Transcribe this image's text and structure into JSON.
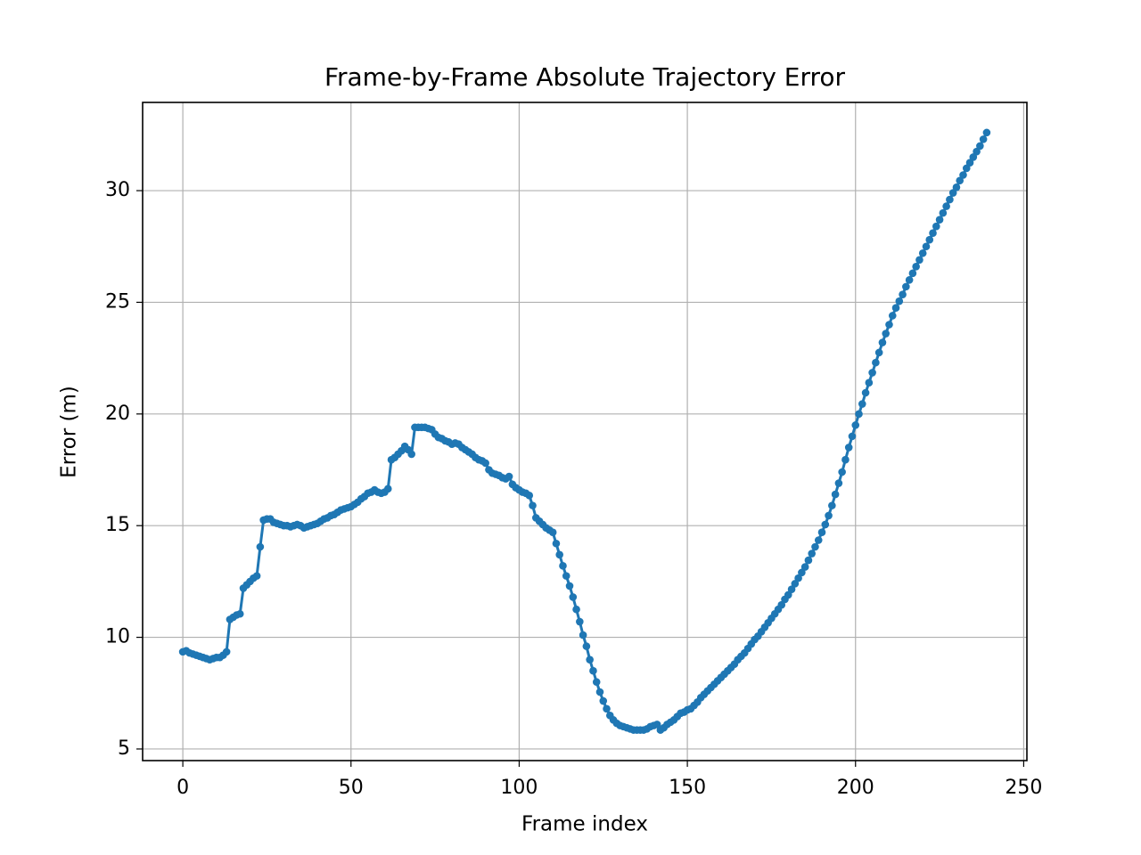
{
  "chart_data": {
    "type": "line",
    "title": "Frame-by-Frame Absolute Trajectory Error",
    "x_label": "Frame index",
    "y_label": "Error (m)",
    "x": [
      0,
      1,
      2,
      3,
      4,
      5,
      6,
      7,
      8,
      9,
      10,
      11,
      12,
      13,
      14,
      15,
      16,
      17,
      18,
      19,
      20,
      21,
      22,
      23,
      24,
      25,
      26,
      27,
      28,
      29,
      30,
      31,
      32,
      33,
      34,
      35,
      36,
      37,
      38,
      39,
      40,
      41,
      42,
      43,
      44,
      45,
      46,
      47,
      48,
      49,
      50,
      51,
      52,
      53,
      54,
      55,
      56,
      57,
      58,
      59,
      60,
      61,
      62,
      63,
      64,
      65,
      66,
      67,
      68,
      69,
      70,
      71,
      72,
      73,
      74,
      75,
      76,
      77,
      78,
      79,
      80,
      81,
      82,
      83,
      84,
      85,
      86,
      87,
      88,
      89,
      90,
      91,
      92,
      93,
      94,
      95,
      96,
      97,
      98,
      99,
      100,
      101,
      102,
      103,
      104,
      105,
      106,
      107,
      108,
      109,
      110,
      111,
      112,
      113,
      114,
      115,
      116,
      117,
      118,
      119,
      120,
      121,
      122,
      123,
      124,
      125,
      126,
      127,
      128,
      129,
      130,
      131,
      132,
      133,
      134,
      135,
      136,
      137,
      138,
      139,
      140,
      141,
      142,
      143,
      144,
      145,
      146,
      147,
      148,
      149,
      150,
      151,
      152,
      153,
      154,
      155,
      156,
      157,
      158,
      159,
      160,
      161,
      162,
      163,
      164,
      165,
      166,
      167,
      168,
      169,
      170,
      171,
      172,
      173,
      174,
      175,
      176,
      177,
      178,
      179,
      180,
      181,
      182,
      183,
      184,
      185,
      186,
      187,
      188,
      189,
      190,
      191,
      192,
      193,
      194,
      195,
      196,
      197,
      198,
      199,
      200,
      201,
      202,
      203,
      204,
      205,
      206,
      207,
      208,
      209,
      210,
      211,
      212,
      213,
      214,
      215,
      216,
      217,
      218,
      219,
      220,
      221,
      222,
      223,
      224,
      225,
      226,
      227,
      228,
      229,
      230,
      231,
      232,
      233,
      234,
      235,
      236,
      237,
      238,
      239
    ],
    "series": [
      {
        "color": "#1f77b4",
        "values": [
          9.35,
          9.4,
          9.3,
          9.25,
          9.2,
          9.15,
          9.1,
          9.05,
          9.0,
          9.05,
          9.1,
          9.1,
          9.2,
          9.35,
          10.8,
          10.9,
          11.0,
          11.05,
          12.2,
          12.35,
          12.5,
          12.65,
          12.75,
          14.05,
          15.25,
          15.3,
          15.3,
          15.15,
          15.1,
          15.05,
          15.0,
          15.0,
          14.95,
          15.0,
          15.05,
          15.0,
          14.9,
          14.95,
          15.0,
          15.05,
          15.1,
          15.2,
          15.3,
          15.35,
          15.45,
          15.5,
          15.6,
          15.7,
          15.75,
          15.8,
          15.85,
          15.95,
          16.05,
          16.2,
          16.3,
          16.45,
          16.5,
          16.6,
          16.5,
          16.45,
          16.5,
          16.65,
          17.95,
          18.05,
          18.2,
          18.35,
          18.55,
          18.4,
          18.2,
          19.4,
          19.4,
          19.4,
          19.4,
          19.35,
          19.3,
          19.1,
          18.95,
          18.9,
          18.8,
          18.75,
          18.65,
          18.7,
          18.65,
          18.5,
          18.4,
          18.3,
          18.2,
          18.05,
          17.95,
          17.9,
          17.8,
          17.5,
          17.35,
          17.3,
          17.25,
          17.15,
          17.1,
          17.2,
          16.85,
          16.7,
          16.6,
          16.5,
          16.45,
          16.35,
          15.9,
          15.35,
          15.2,
          15.05,
          14.9,
          14.8,
          14.7,
          14.2,
          13.7,
          13.2,
          12.75,
          12.3,
          11.8,
          11.25,
          10.7,
          10.1,
          9.6,
          9.0,
          8.5,
          8.0,
          7.55,
          7.15,
          6.8,
          6.5,
          6.3,
          6.15,
          6.05,
          6.0,
          5.95,
          5.9,
          5.85,
          5.85,
          5.85,
          5.85,
          5.9,
          6.0,
          6.05,
          6.1,
          5.85,
          5.95,
          6.1,
          6.2,
          6.3,
          6.45,
          6.6,
          6.65,
          6.75,
          6.8,
          6.95,
          7.1,
          7.3,
          7.45,
          7.6,
          7.75,
          7.9,
          8.05,
          8.2,
          8.35,
          8.5,
          8.65,
          8.8,
          9.0,
          9.15,
          9.3,
          9.5,
          9.7,
          9.9,
          10.05,
          10.25,
          10.45,
          10.65,
          10.85,
          11.05,
          11.25,
          11.45,
          11.7,
          11.9,
          12.15,
          12.4,
          12.65,
          12.9,
          13.15,
          13.45,
          13.75,
          14.05,
          14.35,
          14.7,
          15.05,
          15.45,
          15.9,
          16.4,
          16.9,
          17.4,
          17.95,
          18.5,
          19.0,
          19.5,
          20.0,
          20.45,
          20.95,
          21.4,
          21.85,
          22.3,
          22.75,
          23.2,
          23.6,
          24.0,
          24.4,
          24.75,
          25.05,
          25.35,
          25.7,
          26.0,
          26.3,
          26.6,
          26.9,
          27.2,
          27.5,
          27.8,
          28.1,
          28.4,
          28.7,
          29.0,
          29.3,
          29.6,
          29.9,
          30.15,
          30.45,
          30.7,
          31.0,
          31.25,
          31.5,
          31.75,
          32.0,
          32.3,
          32.6
        ]
      }
    ],
    "xlim": [
      -11.95,
      250.95
    ],
    "xticks": [
      0,
      50,
      100,
      150,
      200,
      250
    ],
    "ylim": [
      4.48,
      33.95
    ],
    "yticks": [
      5,
      10,
      15,
      20,
      25,
      30
    ],
    "grid": true
  }
}
